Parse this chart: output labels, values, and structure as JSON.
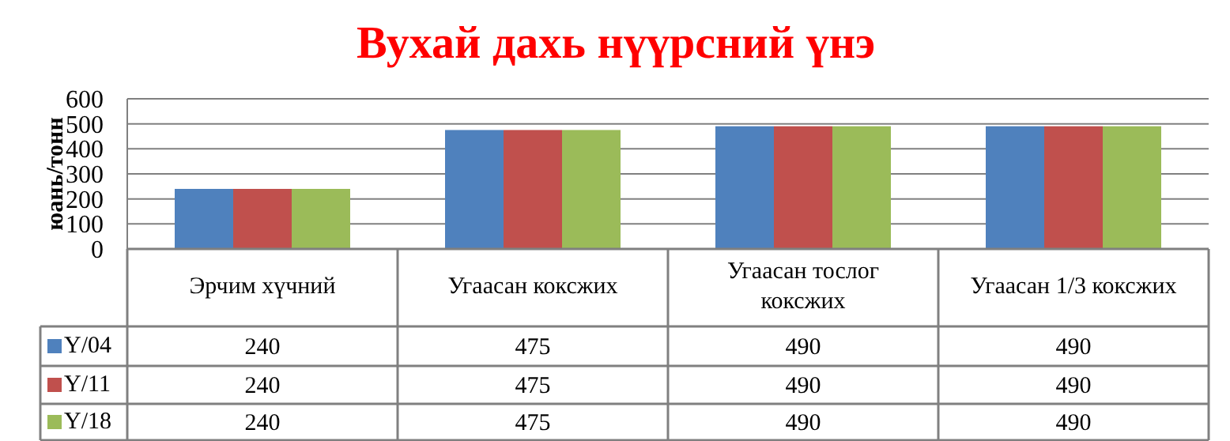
{
  "chart_data": {
    "type": "bar",
    "title": "Вухай дахь нүүрсний үнэ",
    "ylabel": "юань/тонн",
    "categories": [
      "Эрчим хүчний",
      "Угаасан коксжих",
      "Угаасан тослог коксжих",
      "Угаасан 1/3 коксжих"
    ],
    "series": [
      {
        "name": "Y/04",
        "color": "#4f81bd",
        "values": [
          240,
          475,
          490,
          490
        ]
      },
      {
        "name": "Y/11",
        "color": "#c0504d",
        "values": [
          240,
          475,
          490,
          490
        ]
      },
      {
        "name": "Y/18",
        "color": "#9bbb59",
        "values": [
          240,
          475,
          490,
          490
        ]
      }
    ],
    "ylim": [
      0,
      600
    ],
    "yticks": [
      0,
      100,
      200,
      300,
      400,
      500,
      600
    ],
    "grid": "y",
    "data_labels": true,
    "legend": "bottom"
  }
}
